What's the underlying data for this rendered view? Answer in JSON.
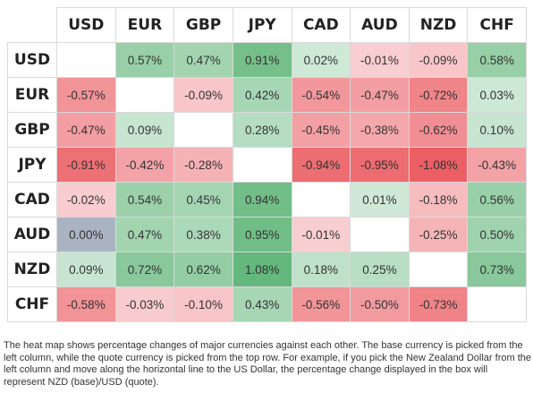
{
  "chart_data": {
    "type": "heatmap",
    "columns": [
      "USD",
      "EUR",
      "GBP",
      "JPY",
      "CAD",
      "AUD",
      "NZD",
      "CHF"
    ],
    "rows": [
      "USD",
      "EUR",
      "GBP",
      "JPY",
      "CAD",
      "AUD",
      "NZD",
      "CHF"
    ],
    "values": [
      [
        null,
        0.57,
        0.47,
        0.91,
        0.02,
        -0.01,
        -0.09,
        0.58
      ],
      [
        -0.57,
        null,
        -0.09,
        0.42,
        -0.54,
        -0.47,
        -0.72,
        0.03
      ],
      [
        -0.47,
        0.09,
        null,
        0.28,
        -0.45,
        -0.38,
        -0.62,
        0.1
      ],
      [
        -0.91,
        -0.42,
        -0.28,
        null,
        -0.94,
        -0.95,
        -1.08,
        -0.43
      ],
      [
        -0.02,
        0.54,
        0.45,
        0.94,
        null,
        0.01,
        -0.18,
        0.56
      ],
      [
        0.0,
        0.47,
        0.38,
        0.95,
        -0.01,
        null,
        -0.25,
        0.5
      ],
      [
        0.09,
        0.72,
        0.62,
        1.08,
        0.18,
        0.25,
        null,
        0.73
      ],
      [
        -0.58,
        -0.03,
        -0.1,
        0.43,
        -0.56,
        -0.5,
        -0.73,
        null
      ]
    ],
    "unit": "%",
    "colors": {
      "positive": "#2e9e4f",
      "negative": "#e3262e",
      "zero": "#aab3c2",
      "diagonal": "#ffffff"
    }
  },
  "caption": "The heat map shows percentage changes of major currencies against each other. The base currency is picked from the left column, while the quote currency is picked from the top row. For example, if you pick the New Zealand Dollar from the left column and move along the horizontal line to the US Dollar, the percentage change displayed in the box will represent NZD (base)/USD (quote)."
}
